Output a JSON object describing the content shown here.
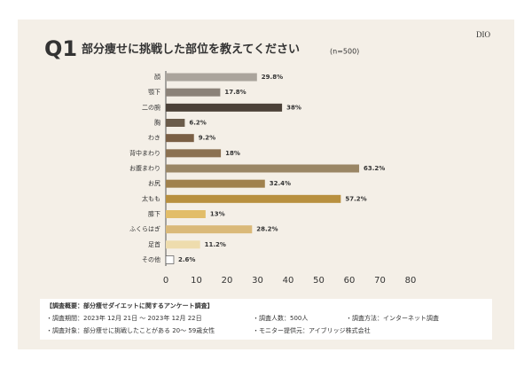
{
  "chart_data": {
    "type": "bar",
    "orientation": "horizontal",
    "question_number": "Q1",
    "title": "部分痩せに挑戦した部位を教えてください",
    "subtitle": "(n=500)",
    "logo": "DIO",
    "categories": [
      "顔",
      "顎下",
      "二の腕",
      "胸",
      "わき",
      "背中まわり",
      "お腹まわり",
      "お尻",
      "太もも",
      "膝下",
      "ふくらはぎ",
      "足首",
      "その他"
    ],
    "values": [
      29.8,
      17.8,
      38,
      6.2,
      9.2,
      18,
      63.2,
      32.4,
      57.2,
      13,
      28.2,
      11.2,
      2.6
    ],
    "value_labels": [
      "29.8%",
      "17.8%",
      "38%",
      "6.2%",
      "9.2%",
      "18%",
      "63.2%",
      "32.4%",
      "57.2%",
      "13%",
      "28.2%",
      "11.2%",
      "2.6%"
    ],
    "colors": [
      "#aaa49c",
      "#8b8279",
      "#4b4138",
      "#6b5c4b",
      "#7a5f45",
      "#8b7151",
      "#9a8665",
      "#a0814d",
      "#b8903f",
      "#e2bd68",
      "#dab979",
      "#eedcad",
      "#ffffff"
    ],
    "xlim": [
      0,
      80
    ],
    "xticks": [
      0,
      10,
      20,
      30,
      40,
      50,
      60,
      70,
      80
    ],
    "grid": false
  },
  "notes": {
    "heading": "【調査概要：部分痩せダイエットに関するアンケート調査】",
    "items": [
      "・調査期間：2023年 12月 21日 ～ 2023年 12月 22日",
      "・調査人数：500人",
      "・調査方法：インターネット調査",
      "・調査対象：部分痩せに挑戦したことがある 20～ 59歳女性",
      "・モニター提供元：アイブリッジ株式会社"
    ]
  }
}
